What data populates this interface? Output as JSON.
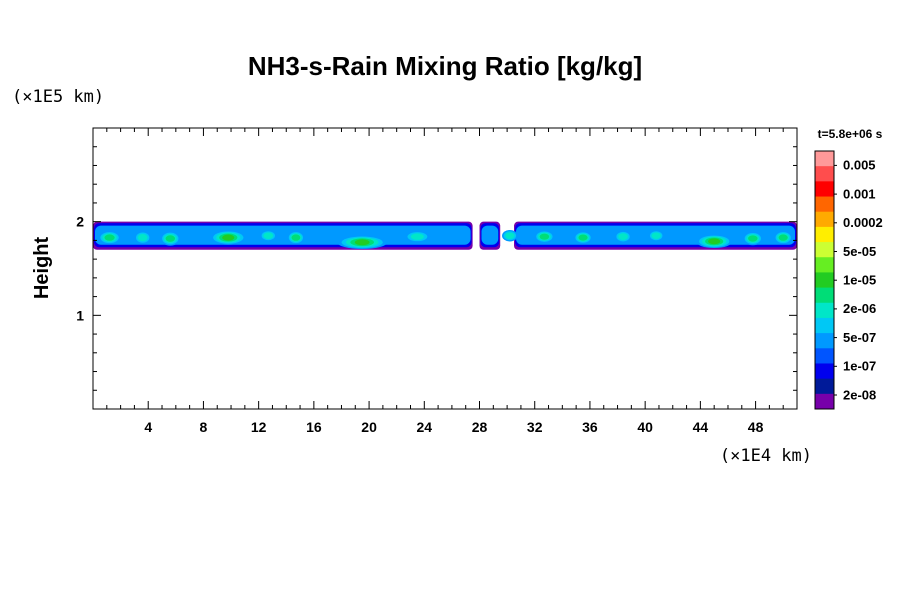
{
  "chart_data": {
    "type": "heatmap",
    "title": "NH3-s-Rain Mixing Ratio [kg/kg]",
    "ylabel": "Height",
    "xlabel": "",
    "x_unit": "(×1E4 km)",
    "y_unit": "(×1E5 km)",
    "time_label": "t=5.8e+06 s",
    "xlim": [
      0,
      51
    ],
    "ylim": [
      0,
      3
    ],
    "x_ticks": [
      4,
      8,
      12,
      16,
      20,
      24,
      28,
      32,
      36,
      40,
      44,
      48
    ],
    "y_ticks": [
      1,
      2
    ],
    "grid": false,
    "colorbar": {
      "placement": "right",
      "labels": [
        "0.005",
        "0.001",
        "0.0002",
        "5e-05",
        "1e-05",
        "2e-06",
        "5e-07",
        "1e-07",
        "2e-08"
      ],
      "colors": [
        "#ff9999",
        "#ff4d4d",
        "#ff0000",
        "#ff6600",
        "#ffaa00",
        "#ffee00",
        "#ccff33",
        "#66ee22",
        "#22cc22",
        "#00dd77",
        "#00e6c8",
        "#00c8f5",
        "#0099ff",
        "#0055ff",
        "#0000ee",
        "#001a99",
        "#7700aa"
      ]
    },
    "layer": {
      "y_range": [
        1.7,
        2.0
      ],
      "segments": [
        {
          "x": [
            0,
            27.5
          ]
        },
        {
          "x": [
            28,
            29.5
          ]
        },
        {
          "x": [
            30.5,
            51
          ]
        }
      ],
      "cores": [
        {
          "x": 1.2,
          "y": 1.83,
          "w": 1.2,
          "h": 0.1,
          "level": 7
        },
        {
          "x": 3.6,
          "y": 1.83,
          "w": 0.8,
          "h": 0.1,
          "level": 6
        },
        {
          "x": 5.6,
          "y": 1.82,
          "w": 1.0,
          "h": 0.11,
          "level": 7
        },
        {
          "x": 9.8,
          "y": 1.83,
          "w": 2.2,
          "h": 0.11,
          "level": 8
        },
        {
          "x": 12.7,
          "y": 1.85,
          "w": 0.8,
          "h": 0.08,
          "level": 6
        },
        {
          "x": 14.7,
          "y": 1.83,
          "w": 0.8,
          "h": 0.1,
          "level": 7
        },
        {
          "x": 19.5,
          "y": 1.78,
          "w": 3.2,
          "h": 0.1,
          "level": 8
        },
        {
          "x": 23.5,
          "y": 1.84,
          "w": 1.5,
          "h": 0.08,
          "level": 6
        },
        {
          "x": 30.2,
          "y": 1.85,
          "w": 0.7,
          "h": 0.08,
          "level": 6
        },
        {
          "x": 32.7,
          "y": 1.84,
          "w": 1.0,
          "h": 0.09,
          "level": 7
        },
        {
          "x": 35.5,
          "y": 1.83,
          "w": 0.9,
          "h": 0.09,
          "level": 7
        },
        {
          "x": 38.4,
          "y": 1.84,
          "w": 0.8,
          "h": 0.09,
          "level": 6
        },
        {
          "x": 40.8,
          "y": 1.85,
          "w": 0.7,
          "h": 0.08,
          "level": 6
        },
        {
          "x": 45.0,
          "y": 1.79,
          "w": 2.2,
          "h": 0.1,
          "level": 8
        },
        {
          "x": 47.8,
          "y": 1.82,
          "w": 1.0,
          "h": 0.1,
          "level": 7
        },
        {
          "x": 50.0,
          "y": 1.83,
          "w": 0.9,
          "h": 0.1,
          "level": 7
        }
      ]
    }
  }
}
